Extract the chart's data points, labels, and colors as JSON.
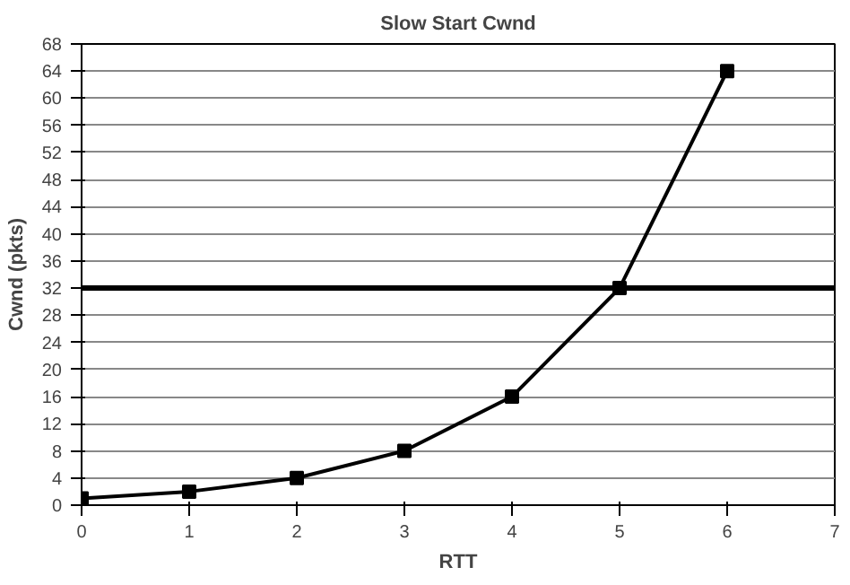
{
  "chart_data": {
    "type": "line",
    "title": "Slow Start Cwnd",
    "xlabel": "RTT",
    "ylabel": "Cwnd (pkts)",
    "x": [
      0,
      1,
      2,
      3,
      4,
      5,
      6
    ],
    "series": [
      {
        "color": "#000000",
        "values": [
          1,
          2,
          4,
          8,
          16,
          32,
          64
        ]
      }
    ],
    "xlim": [
      0,
      7
    ],
    "xticks": [
      0,
      1,
      2,
      3,
      4,
      5,
      6,
      7
    ],
    "ylim": [
      0,
      68
    ],
    "yticks": [
      0,
      4,
      8,
      12,
      16,
      20,
      24,
      28,
      32,
      36,
      40,
      44,
      48,
      52,
      56,
      60,
      64,
      68
    ],
    "grid": "y",
    "marker": "square",
    "line_style": "solid",
    "ref_lines": [
      {
        "axis": "y",
        "value": 32,
        "color": "#000000"
      }
    ]
  }
}
